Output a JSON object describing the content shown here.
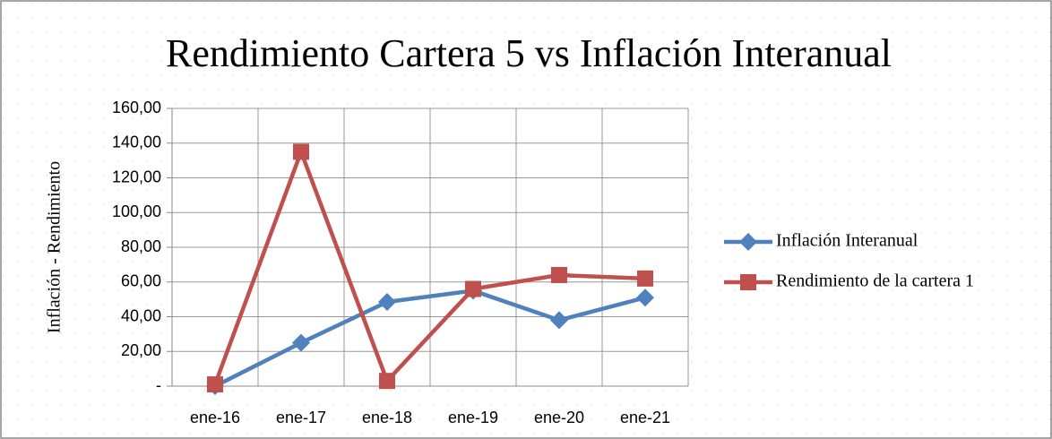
{
  "chart_data": {
    "type": "line",
    "title": "Rendimiento Cartera 5 vs Inflación Interanual",
    "y_label": "Inflación - Rendimiento",
    "categories": [
      "ene-16",
      "ene-17",
      "ene-18",
      "ene-19",
      "ene-20",
      "ene-21"
    ],
    "series": [
      {
        "name": "Inflación Interanual",
        "color": "#4f81bd",
        "marker": "diamond",
        "values": [
          0,
          25,
          48.5,
          55,
          38,
          51
        ]
      },
      {
        "name": "Rendimiento de la cartera 1",
        "color": "#c0504d",
        "marker": "square",
        "values": [
          1,
          135,
          3,
          56,
          64,
          62
        ]
      }
    ],
    "ylim": [
      0,
      160
    ],
    "yticks": [
      {
        "value": 0,
        "label": "-"
      },
      {
        "value": 20,
        "label": "20,00"
      },
      {
        "value": 40,
        "label": "40,00"
      },
      {
        "value": 60,
        "label": "60,00"
      },
      {
        "value": 80,
        "label": "80,00"
      },
      {
        "value": 100,
        "label": "100,00"
      },
      {
        "value": 120,
        "label": "120,00"
      },
      {
        "value": 140,
        "label": "140,00"
      },
      {
        "value": 160,
        "label": "160,00"
      }
    ],
    "grid": true,
    "legend": "right"
  }
}
